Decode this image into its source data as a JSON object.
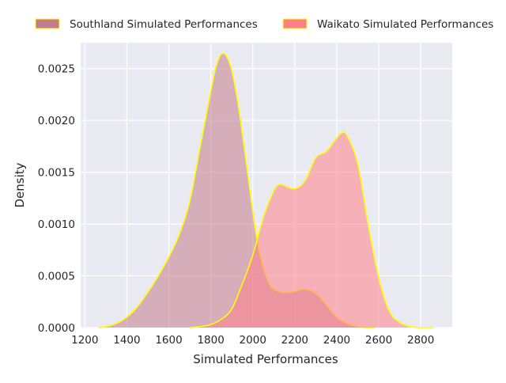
{
  "chart_data": {
    "type": "area",
    "title": "",
    "xlabel": "Simulated Performances",
    "ylabel": "Density",
    "xlim": [
      1180,
      2950
    ],
    "ylim": [
      0,
      0.00275
    ],
    "xticks": [
      1200,
      1400,
      1600,
      1800,
      2000,
      2200,
      2400,
      2600,
      2800
    ],
    "yticks": [
      0,
      0.0005,
      0.001,
      0.0015,
      0.002,
      0.0025
    ],
    "ytick_labels": [
      "0.0000",
      "0.0005",
      "0.0010",
      "0.0015",
      "0.0020",
      "0.0025"
    ],
    "grid": true,
    "legend_position": "top",
    "series": [
      {
        "name": "Southland Simulated Performances",
        "fill": "#c47c8c",
        "edge": "#ffff00",
        "x": [
          1265,
          1300,
          1350,
          1400,
          1450,
          1500,
          1550,
          1600,
          1650,
          1700,
          1750,
          1800,
          1825,
          1850,
          1875,
          1900,
          1925,
          1950,
          1975,
          2000,
          2025,
          2050,
          2075,
          2100,
          2150,
          2200,
          2250,
          2300,
          2350,
          2400,
          2450,
          2500,
          2550,
          2580
        ],
        "y": [
          0.0,
          1e-05,
          4e-05,
          0.0001,
          0.0002,
          0.00034,
          0.0005,
          0.00068,
          0.0009,
          0.00122,
          0.00175,
          0.00228,
          0.00252,
          0.00264,
          0.00262,
          0.00248,
          0.00222,
          0.00188,
          0.0015,
          0.00112,
          0.0008,
          0.00058,
          0.00044,
          0.00037,
          0.00034,
          0.00035,
          0.00037,
          0.00033,
          0.00022,
          0.0001,
          4e-05,
          1e-05,
          0.0,
          0.0
        ]
      },
      {
        "name": "Waikato Simulated Performances",
        "fill": "#ff7f88",
        "edge": "#ffff00",
        "x": [
          1700,
          1750,
          1800,
          1850,
          1900,
          1950,
          2000,
          2050,
          2100,
          2125,
          2150,
          2200,
          2250,
          2300,
          2350,
          2400,
          2425,
          2450,
          2500,
          2550,
          2600,
          2650,
          2700,
          2750,
          2800,
          2860
        ],
        "y": [
          0.0,
          1e-05,
          3e-05,
          8e-05,
          0.00018,
          0.00042,
          0.0007,
          0.00106,
          0.00132,
          0.00138,
          0.00137,
          0.00134,
          0.00142,
          0.00164,
          0.0017,
          0.00183,
          0.00188,
          0.00185,
          0.00158,
          0.00099,
          0.00048,
          0.00016,
          5e-05,
          1e-05,
          0.0,
          0.0
        ]
      }
    ]
  }
}
